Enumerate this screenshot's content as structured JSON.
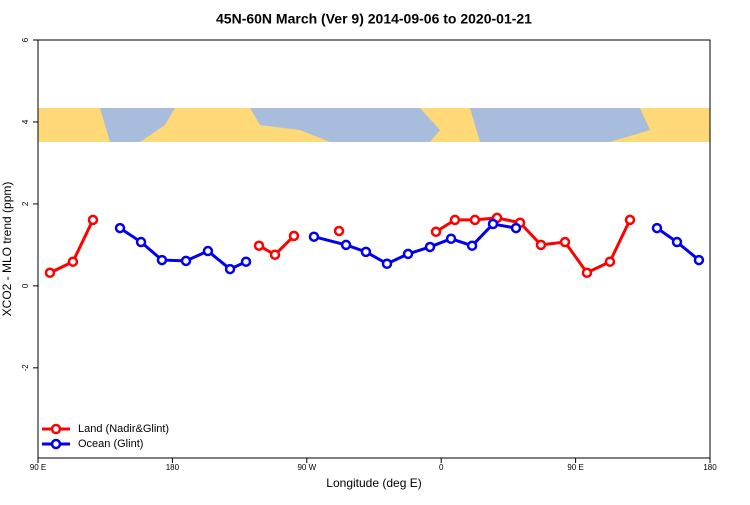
{
  "chart_data": {
    "type": "line",
    "title": "45N-60N March (Ver 9)   2014-09-06 to 2020-01-21",
    "xlabel": "Longitude (deg E)",
    "ylabel": "XCO2 - MLO trend (ppm)",
    "xlim": [
      90,
      540
    ],
    "xticks": [
      {
        "value": 90,
        "label": "90 E"
      },
      180,
      {
        "value": 270,
        "label": "90 W"
      },
      {
        "value": 360,
        "label": "0"
      },
      {
        "value": 450,
        "label": "90 E"
      },
      {
        "value": 540,
        "label": "180"
      }
    ],
    "ylim": [
      -4.2,
      6
    ],
    "yticks": [
      -2,
      0,
      2,
      4,
      6
    ],
    "legend": "bottom-left",
    "series": [
      {
        "name": "Land (Nadir&Glint)",
        "color": "#ff0000",
        "x": [
          98,
          113.4,
          126.8,
          null,
          238,
          248.7,
          261.4,
          null,
          291.6,
          null,
          356.5,
          369.2,
          382.6,
          397.4,
          412.8,
          426.8,
          442.9,
          457.6,
          473,
          486.4
        ],
        "values": [
          0.32,
          0.59,
          1.61,
          null,
          0.98,
          0.76,
          1.22,
          null,
          1.34,
          null,
          1.32,
          1.61,
          1.61,
          1.66,
          1.54,
          1.0,
          1.07,
          0.32,
          0.59,
          1.61
        ]
      },
      {
        "name": "Ocean (Glint)",
        "color": "#0000ee",
        "x": [
          144.9,
          159,
          173,
          189.1,
          203.8,
          218.6,
          229.3,
          null,
          274.8,
          296.3,
          309.6,
          323.7,
          337.8,
          352.5,
          366.6,
          380.7,
          394.7,
          410.1,
          null,
          504.5,
          517.9,
          532.6
        ],
        "values": [
          1.41,
          1.07,
          0.63,
          0.61,
          0.85,
          0.41,
          0.59,
          null,
          1.2,
          1.0,
          0.83,
          0.54,
          0.78,
          0.95,
          1.15,
          0.98,
          1.51,
          1.41,
          null,
          1.41,
          1.07,
          0.63
        ]
      }
    ]
  }
}
